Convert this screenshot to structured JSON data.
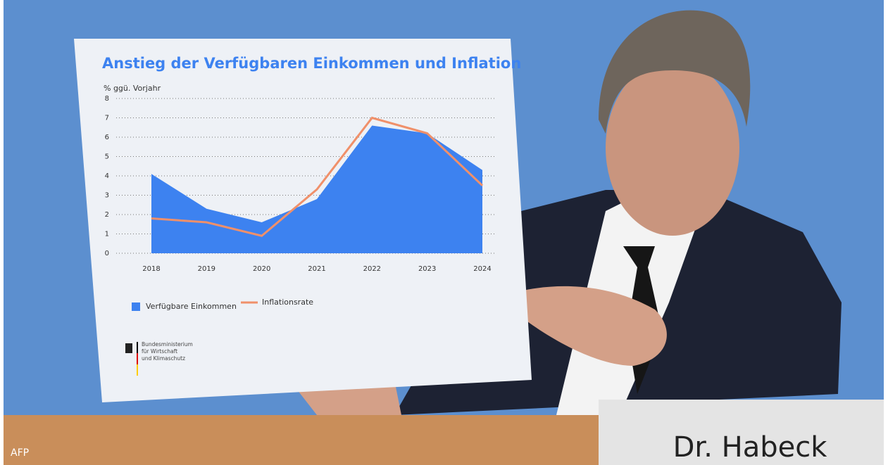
{
  "chart_data": {
    "type": "area_line",
    "title": "Anstieg der Verfügbaren Einkommen und Inflation",
    "y_label": "% ggü. Vorjahr",
    "categories": [
      "2018",
      "2019",
      "2020",
      "2021",
      "2022",
      "2023",
      "2024"
    ],
    "series": [
      {
        "name": "Verfügbare Einkommen",
        "color": "#3d82f0",
        "kind": "area",
        "values": [
          4.1,
          2.3,
          1.6,
          2.8,
          6.6,
          6.2,
          4.3
        ]
      },
      {
        "name": "Inflationsrate",
        "color": "#f0906a",
        "kind": "line",
        "values": [
          1.8,
          1.6,
          0.9,
          3.3,
          7.0,
          6.2,
          3.5
        ]
      }
    ],
    "ylim": [
      0,
      8
    ],
    "yticks": [
      0,
      1,
      2,
      3,
      4,
      5,
      6,
      7,
      8
    ],
    "grid": true
  },
  "logo": {
    "lines": [
      "Bundesministerium",
      "für Wirtschaft",
      "und Klimaschutz"
    ]
  },
  "name_plate": "Dr. Habeck",
  "credit": "AFP"
}
